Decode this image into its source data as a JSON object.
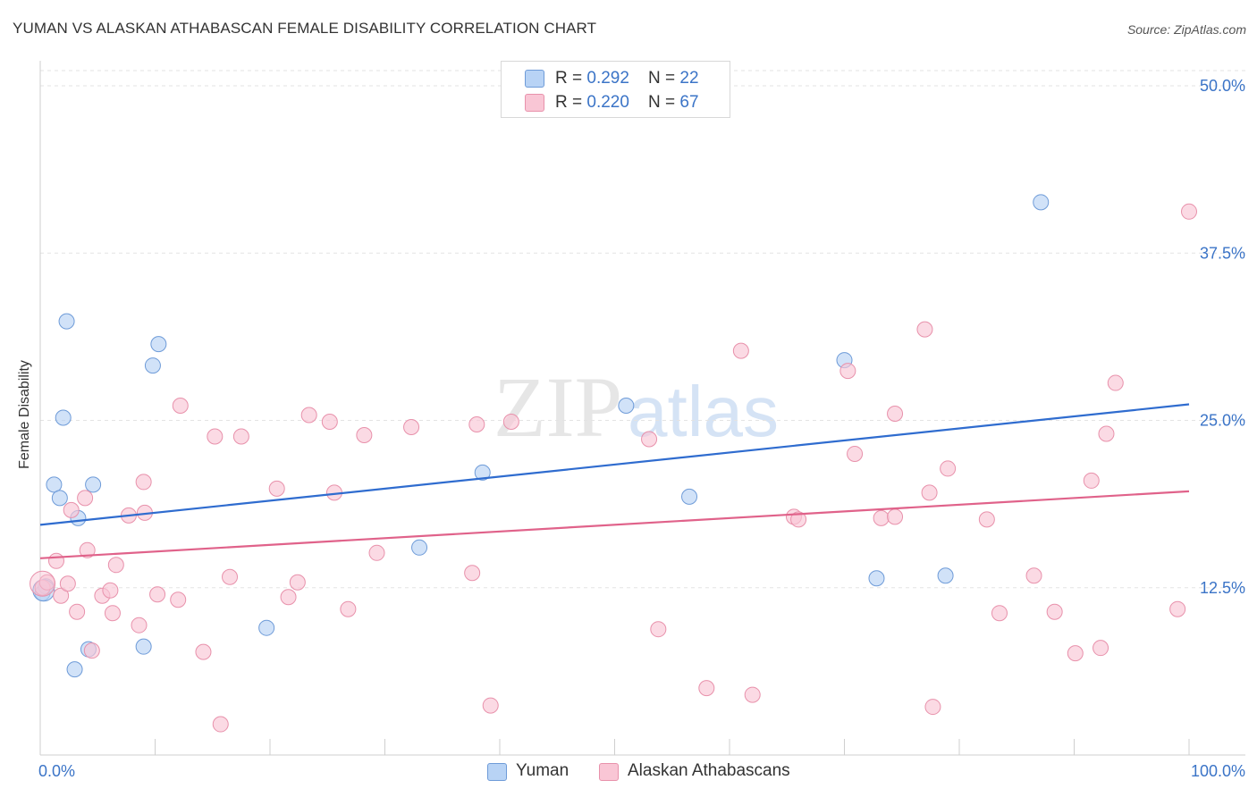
{
  "header": {
    "title": "YUMAN VS ALASKAN ATHABASCAN FEMALE DISABILITY CORRELATION CHART",
    "source": "Source: ZipAtlas.com"
  },
  "watermark": {
    "zip": "ZIP",
    "atlas": "atlas"
  },
  "legend_top": {
    "rows": [
      {
        "r_label": "R = ",
        "r_value": "0.292",
        "n_label": "N = ",
        "n_value": "22",
        "color": "#b8d3f5"
      },
      {
        "r_label": "R = ",
        "r_value": "0.220",
        "n_label": "N = ",
        "n_value": "67",
        "color": "#f9c6d5"
      }
    ]
  },
  "legend_bottom": {
    "items": [
      {
        "label": "Yuman",
        "color": "#b8d3f5"
      },
      {
        "label": "Alaskan Athabascans",
        "color": "#f9c6d5"
      }
    ]
  },
  "chart_data": {
    "type": "scatter",
    "title": "YUMAN VS ALASKAN ATHABASCAN FEMALE DISABILITY CORRELATION CHART",
    "xlabel": "",
    "ylabel": "Female Disability",
    "xlim": [
      0,
      100
    ],
    "ylim": [
      0,
      50
    ],
    "x_tick_labels": [
      "0.0%",
      "100.0%"
    ],
    "y_ticks": [
      12.5,
      25.0,
      37.5,
      50.0
    ],
    "y_tick_labels": [
      "12.5%",
      "25.0%",
      "37.5%",
      "50.0%"
    ],
    "grid": true,
    "legend_position": "top-center",
    "series": [
      {
        "name": "Yuman",
        "color": "#b8d3f5",
        "stroke": "#6e9bd8",
        "trend_color": "#2f6ccf",
        "trend": {
          "x0": 0,
          "y0": 17.2,
          "x1": 100,
          "y1": 26.2
        },
        "points": [
          [
            0.2,
            12.1
          ],
          [
            0.5,
            12.6
          ],
          [
            1.2,
            20.2
          ],
          [
            1.7,
            19.2
          ],
          [
            2.0,
            25.2
          ],
          [
            2.3,
            32.4
          ],
          [
            3.0,
            6.4
          ],
          [
            3.3,
            17.7
          ],
          [
            4.2,
            7.9
          ],
          [
            4.6,
            20.2
          ],
          [
            9.0,
            8.1
          ],
          [
            9.8,
            29.1
          ],
          [
            10.3,
            30.7
          ],
          [
            19.7,
            9.5
          ],
          [
            33.0,
            15.5
          ],
          [
            38.5,
            21.1
          ],
          [
            51.0,
            26.1
          ],
          [
            56.5,
            19.3
          ],
          [
            70.0,
            29.5
          ],
          [
            72.8,
            13.2
          ],
          [
            78.8,
            13.4
          ],
          [
            87.1,
            41.3
          ]
        ]
      },
      {
        "name": "Alaskan Athabascans",
        "color": "#f9c6d5",
        "stroke": "#e891ab",
        "trend_color": "#e0628a",
        "trend": {
          "x0": 0,
          "y0": 14.7,
          "x1": 100,
          "y1": 19.7
        },
        "points": [
          [
            0.2,
            12.5
          ],
          [
            0.6,
            12.9
          ],
          [
            1.4,
            14.5
          ],
          [
            1.8,
            11.9
          ],
          [
            2.4,
            12.8
          ],
          [
            2.7,
            18.3
          ],
          [
            3.2,
            10.7
          ],
          [
            3.9,
            19.2
          ],
          [
            4.1,
            15.3
          ],
          [
            4.5,
            7.8
          ],
          [
            5.4,
            11.9
          ],
          [
            6.1,
            12.3
          ],
          [
            6.3,
            10.6
          ],
          [
            6.6,
            14.2
          ],
          [
            7.7,
            17.9
          ],
          [
            8.6,
            9.7
          ],
          [
            9.0,
            20.4
          ],
          [
            9.1,
            18.1
          ],
          [
            10.2,
            12.0
          ],
          [
            12.0,
            11.6
          ],
          [
            12.2,
            26.1
          ],
          [
            14.2,
            7.7
          ],
          [
            15.2,
            23.8
          ],
          [
            15.7,
            2.3
          ],
          [
            16.5,
            13.3
          ],
          [
            17.5,
            23.8
          ],
          [
            20.6,
            19.9
          ],
          [
            21.6,
            11.8
          ],
          [
            22.4,
            12.9
          ],
          [
            23.4,
            25.4
          ],
          [
            25.2,
            24.9
          ],
          [
            25.6,
            19.6
          ],
          [
            26.8,
            10.9
          ],
          [
            28.2,
            23.9
          ],
          [
            29.3,
            15.1
          ],
          [
            32.3,
            24.5
          ],
          [
            37.6,
            13.6
          ],
          [
            38.0,
            24.7
          ],
          [
            39.2,
            3.7
          ],
          [
            41.0,
            24.9
          ],
          [
            53.0,
            23.6
          ],
          [
            53.8,
            9.4
          ],
          [
            58.0,
            5.0
          ],
          [
            61.0,
            30.2
          ],
          [
            62.0,
            4.5
          ],
          [
            65.6,
            17.8
          ],
          [
            66.0,
            17.6
          ],
          [
            70.3,
            28.7
          ],
          [
            70.9,
            22.5
          ],
          [
            73.2,
            17.7
          ],
          [
            74.4,
            17.8
          ],
          [
            74.4,
            25.5
          ],
          [
            77.0,
            31.8
          ],
          [
            77.4,
            19.6
          ],
          [
            77.7,
            3.6
          ],
          [
            79.0,
            21.4
          ],
          [
            82.4,
            17.6
          ],
          [
            83.5,
            10.6
          ],
          [
            86.5,
            13.4
          ],
          [
            88.3,
            10.7
          ],
          [
            90.1,
            7.6
          ],
          [
            91.5,
            20.5
          ],
          [
            92.3,
            8.0
          ],
          [
            92.8,
            24.0
          ],
          [
            93.6,
            27.8
          ],
          [
            99.0,
            10.9
          ],
          [
            100.0,
            40.6
          ]
        ]
      }
    ]
  }
}
